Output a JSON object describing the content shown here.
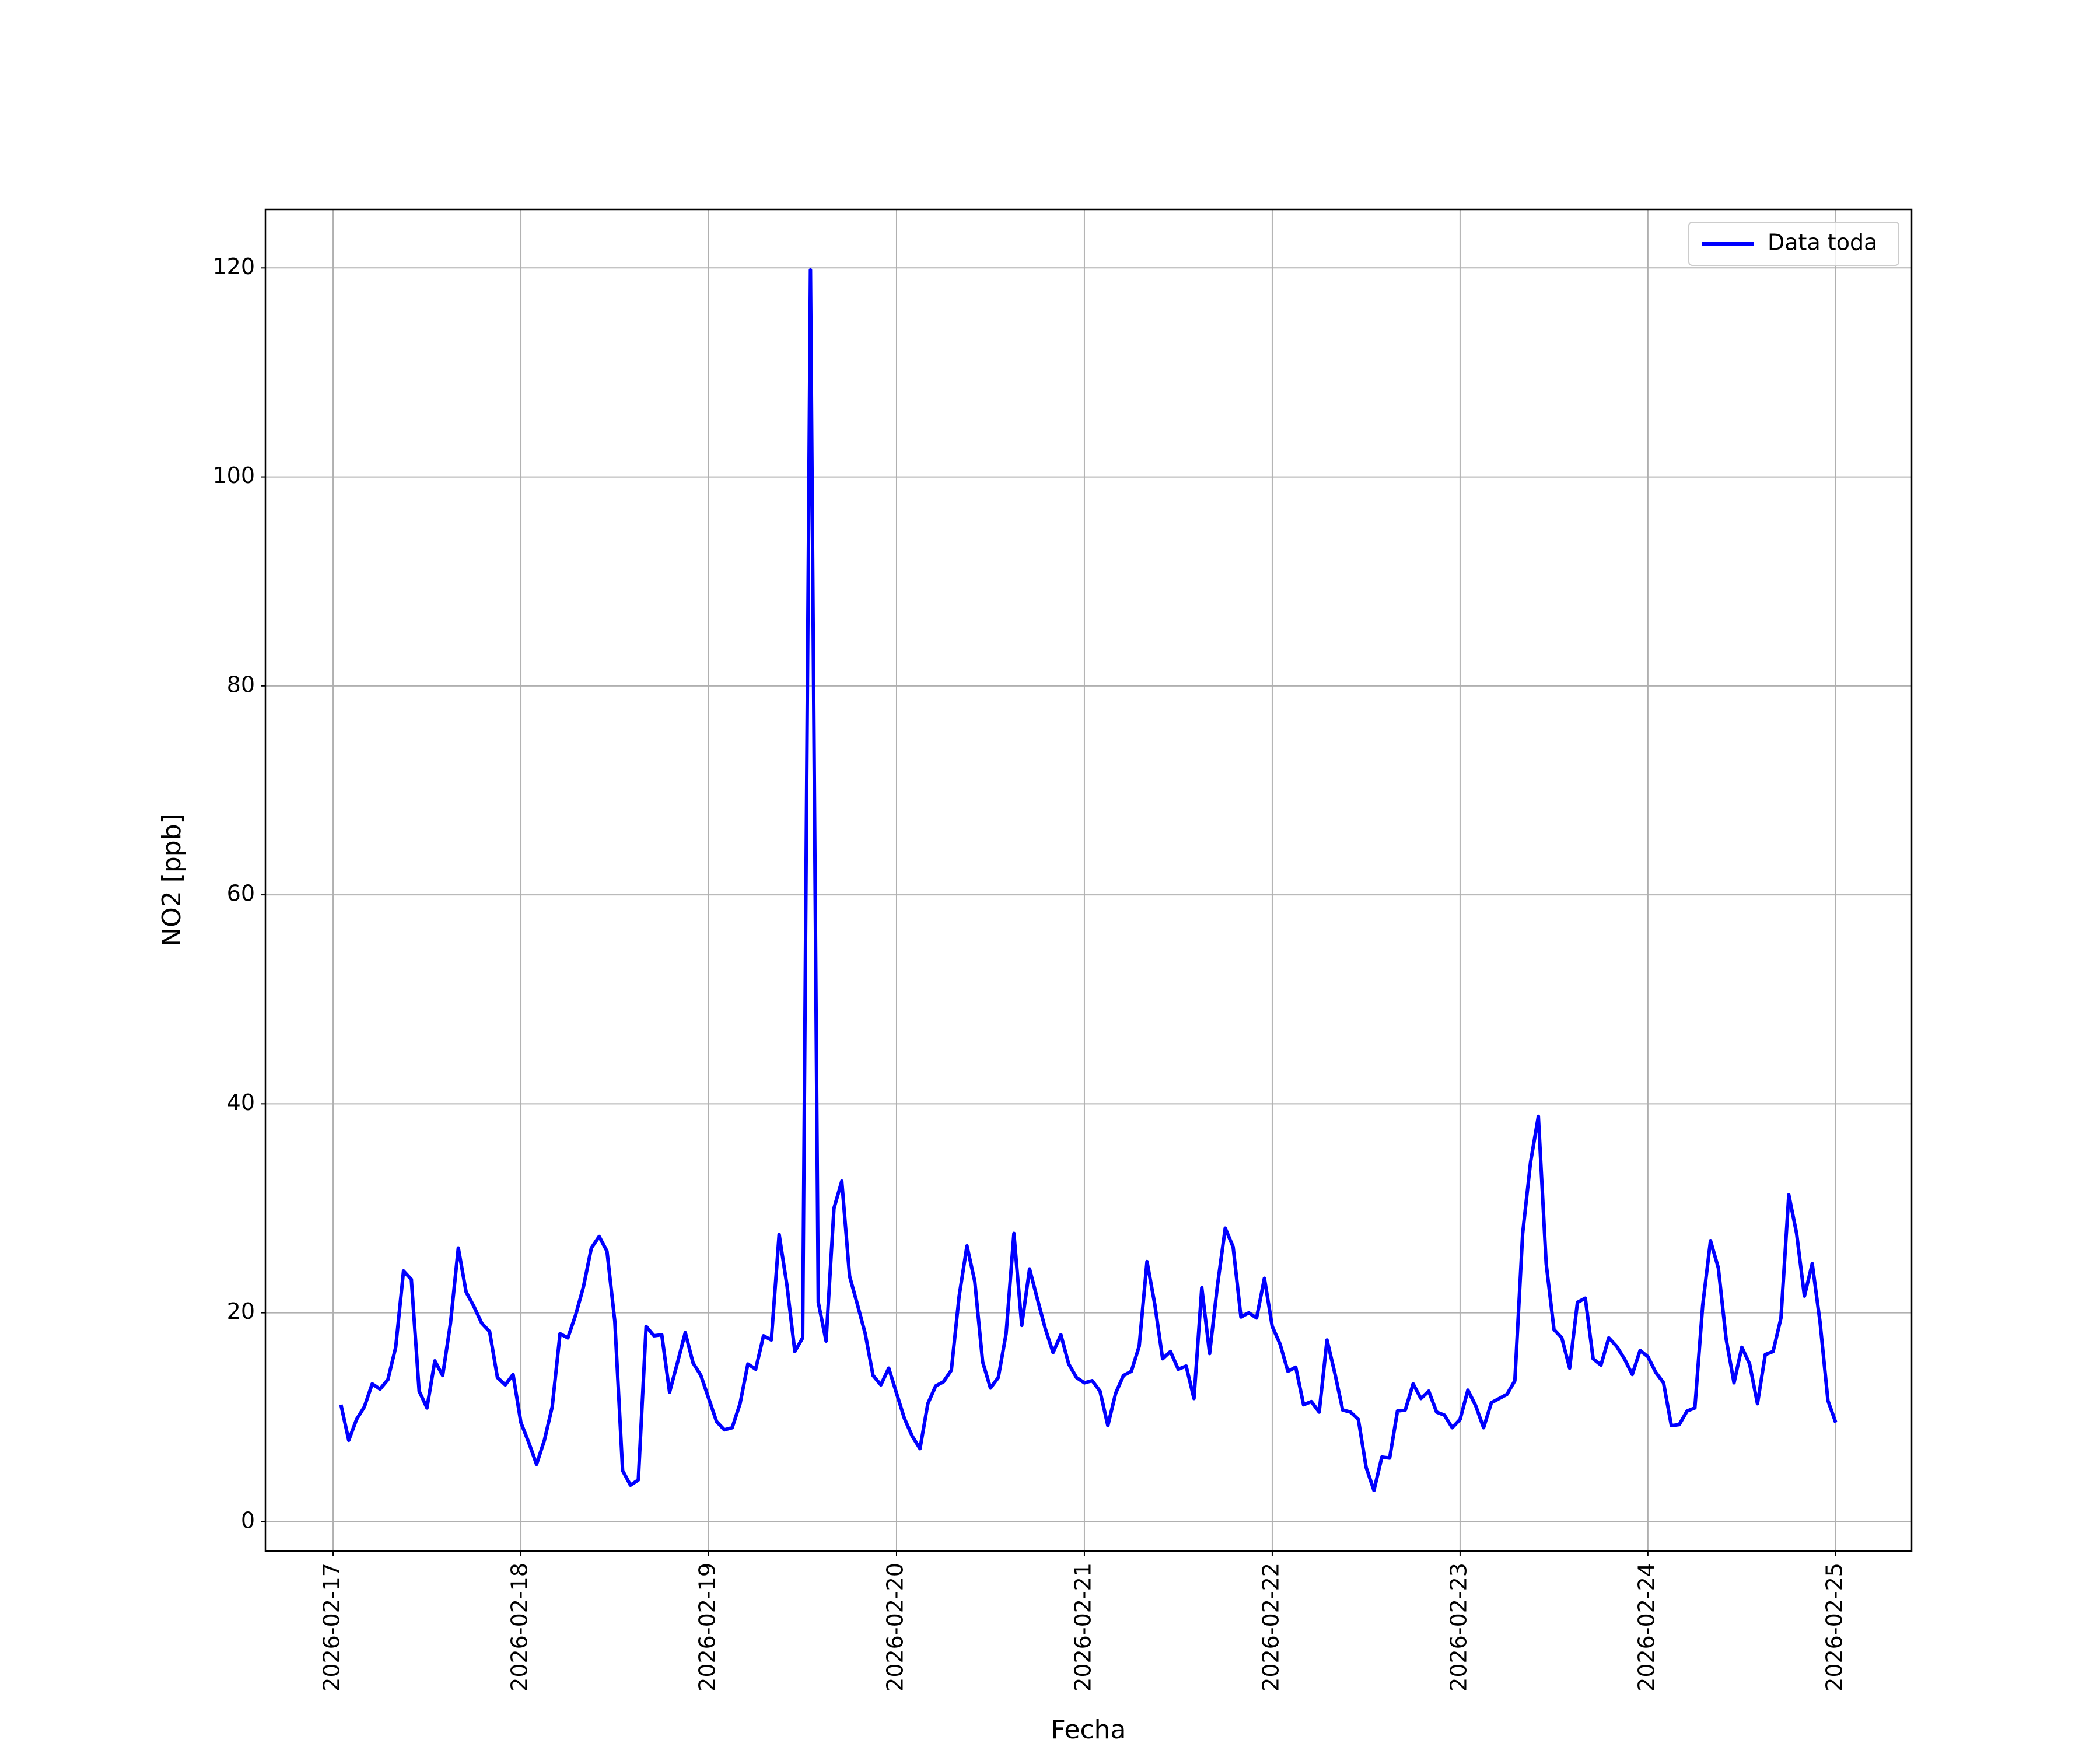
{
  "chart_data": {
    "type": "line",
    "xlabel": "Fecha",
    "ylabel": "NO2 [ppb]",
    "x": [
      1,
      2,
      3,
      4,
      5,
      6,
      7,
      8,
      9,
      10,
      11,
      12,
      13,
      14,
      15,
      16,
      17,
      18,
      19,
      20,
      21,
      22,
      23,
      24,
      25,
      26,
      27,
      28,
      29,
      30,
      31,
      32,
      33,
      34,
      35,
      36,
      37,
      38,
      39,
      40,
      41,
      42,
      43,
      44,
      45,
      46,
      47,
      48,
      49,
      50,
      51,
      52,
      53,
      54,
      55,
      56,
      57,
      58,
      59,
      60,
      61,
      62,
      63,
      64,
      65,
      66,
      67,
      68,
      69,
      70,
      71,
      72,
      73,
      74,
      75,
      76,
      77,
      78,
      79,
      80,
      81,
      82,
      83,
      84,
      85,
      86,
      87,
      88,
      89,
      90,
      91,
      92,
      93,
      94,
      95,
      96,
      97,
      98,
      99,
      100,
      101,
      102,
      103,
      104,
      105,
      106,
      107,
      108,
      109,
      110,
      111,
      112,
      113,
      114,
      115,
      116,
      117,
      118,
      119,
      120,
      121,
      122,
      123,
      124,
      125,
      126,
      127,
      128,
      129,
      130,
      131,
      132,
      133,
      134,
      135,
      136,
      137,
      138,
      139,
      140,
      141,
      142,
      143,
      144,
      145,
      146,
      147,
      148,
      149,
      150,
      151,
      152,
      153,
      154,
      155,
      156,
      157,
      158,
      159,
      160,
      161,
      162,
      163,
      164,
      165,
      166,
      167,
      168,
      169,
      170,
      171,
      172,
      173,
      174,
      175,
      176,
      177,
      178,
      179,
      180,
      181,
      182,
      183,
      184,
      185,
      186,
      187,
      188,
      189,
      190,
      191,
      192
    ],
    "series": [
      {
        "name": "Data toda",
        "color": "#0000ff",
        "values": [
          11.2,
          7.8,
          9.8,
          11,
          13.2,
          12.7,
          13.6,
          16.7,
          24,
          23.2,
          12.5,
          10.9,
          15.4,
          14,
          19,
          26.2,
          22,
          20.6,
          19,
          18.2,
          13.8,
          13.1,
          14.1,
          9.5,
          7.6,
          5.5,
          7.8,
          11,
          18,
          17.6,
          19.8,
          22.5,
          26.2,
          27.3,
          25.9,
          19.2,
          4.9,
          3.5,
          4,
          18.7,
          17.8,
          17.9,
          12.4,
          15.2,
          18.1,
          15.2,
          14,
          11.8,
          9.6,
          8.8,
          9,
          11.3,
          15.1,
          14.6,
          17.8,
          17.4,
          27.5,
          22.6,
          16.3,
          17.6,
          119.8,
          21,
          17.3,
          30,
          32.6,
          23.5,
          20.8,
          18,
          14,
          13.1,
          14.7,
          12.3,
          9.9,
          8.2,
          7,
          11.3,
          13,
          13.4,
          14.5,
          21.6,
          26.4,
          23,
          15.3,
          12.8,
          13.8,
          18,
          27.6,
          18.8,
          24.2,
          21.3,
          18.5,
          16.2,
          17.9,
          15.1,
          13.8,
          13.3,
          13.5,
          12.5,
          9.2,
          12.3,
          14,
          14.4,
          16.8,
          24.9,
          20.8,
          15.6,
          16.3,
          14.6,
          14.9,
          11.8,
          22.4,
          16.1,
          22.6,
          28.1,
          26.3,
          19.6,
          20,
          19.5,
          23.3,
          18.7,
          17,
          14.4,
          14.8,
          11.2,
          11.5,
          10.5,
          17.4,
          14.2,
          10.7,
          10.5,
          9.8,
          5.2,
          3,
          6.2,
          6.1,
          10.6,
          10.7,
          13.2,
          11.8,
          12.5,
          10.5,
          10.2,
          9,
          9.8,
          12.6,
          11.1,
          9,
          11.4,
          11.8,
          12.2,
          13.5,
          27.6,
          34.4,
          38.8,
          24.7,
          18.4,
          17.6,
          14.7,
          21,
          21.4,
          15.6,
          15,
          17.6,
          16.8,
          15.6,
          14.1,
          16.4,
          15.8,
          14.3,
          13.3,
          9.2,
          9.3,
          10.6,
          10.9,
          20.7,
          26.9,
          24.3,
          17.5,
          13.3,
          16.7,
          15.1,
          11.3,
          16,
          16.3,
          19.5,
          31.3,
          27.6,
          21.6,
          24.7,
          19.1,
          11.6,
          9.5
        ]
      }
    ],
    "xlim": [
      -8.65,
      201.7
    ],
    "xticks": [
      {
        "value": 0,
        "label": "2026-02-17"
      },
      {
        "value": 24,
        "label": "2026-02-18"
      },
      {
        "value": 48,
        "label": "2026-02-19"
      },
      {
        "value": 72,
        "label": "2026-02-20"
      },
      {
        "value": 96,
        "label": "2026-02-21"
      },
      {
        "value": 120,
        "label": "2026-02-22"
      },
      {
        "value": 144,
        "label": "2026-02-23"
      },
      {
        "value": 168,
        "label": "2026-02-24"
      },
      {
        "value": 192,
        "label": "2026-02-25"
      }
    ],
    "ylim": [
      -2.8,
      125.6
    ],
    "yticks": [
      0,
      20,
      40,
      60,
      80,
      100,
      120
    ],
    "grid": true,
    "legend": "upper right"
  }
}
